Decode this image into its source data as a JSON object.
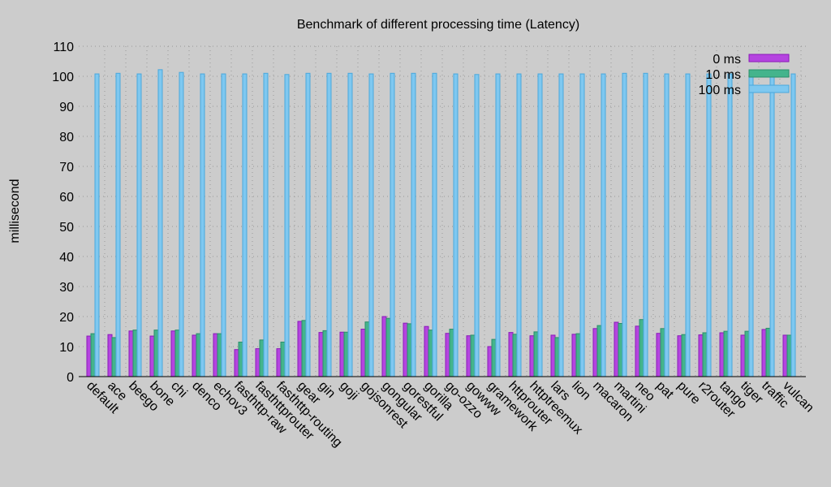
{
  "chart_data": {
    "type": "bar",
    "title": "Benchmark of different processing time (Latency)",
    "xlabel": "",
    "ylabel": "millisecond",
    "ylim": [
      0,
      110
    ],
    "yticks": [
      0,
      10,
      20,
      30,
      40,
      50,
      60,
      70,
      80,
      90,
      100,
      110
    ],
    "grid": true,
    "legend_placement": "top-right",
    "categories": [
      "default",
      "ace",
      "beego",
      "bone",
      "chi",
      "denco",
      "echov3",
      "fasthttp-raw",
      "fasthttprouter",
      "fasthttp-routing",
      "gear",
      "gin",
      "goji",
      "gojsonrest",
      "gongular",
      "gorestful",
      "gorilla",
      "go-ozzo",
      "gowww",
      "gramework",
      "httprouter",
      "httptreemux",
      "lars",
      "lion",
      "macaron",
      "martini",
      "neo",
      "pat",
      "pure",
      "r2router",
      "tango",
      "tiger",
      "traffic",
      "vulcan"
    ],
    "series": [
      {
        "name": "0 ms",
        "color": "#b544e0",
        "border": "#8a1ab8",
        "values": [
          13.5,
          14.0,
          15.2,
          13.5,
          15.2,
          13.8,
          14.3,
          9.0,
          9.3,
          9.3,
          18.4,
          14.7,
          14.8,
          15.8,
          20.0,
          17.8,
          16.7,
          14.4,
          13.6,
          10.0,
          14.7,
          13.6,
          13.8,
          14.1,
          16.0,
          18.1,
          16.8,
          14.4,
          13.6,
          13.9,
          14.6,
          13.8,
          15.7,
          13.8
        ]
      },
      {
        "name": "10 ms",
        "color": "#44b48c",
        "border": "#2a8f6a",
        "values": [
          14.3,
          13.0,
          15.5,
          15.5,
          15.5,
          14.3,
          14.3,
          11.5,
          12.2,
          11.5,
          18.7,
          15.3,
          14.8,
          18.2,
          19.4,
          17.6,
          15.5,
          15.8,
          13.8,
          12.4,
          14.1,
          14.9,
          13.0,
          14.3,
          17.0,
          17.7,
          19.0,
          16.0,
          14.0,
          14.6,
          15.1,
          15.1,
          16.1,
          13.8
        ]
      },
      {
        "name": "100 ms",
        "color": "#7fc8f0",
        "border": "#4aa8dc",
        "values": [
          100.8,
          101.0,
          100.8,
          102.2,
          101.3,
          100.8,
          100.8,
          100.8,
          101.0,
          100.6,
          101.0,
          101.0,
          101.0,
          100.8,
          101.0,
          101.0,
          101.0,
          100.8,
          100.6,
          100.8,
          100.8,
          100.8,
          100.8,
          100.8,
          100.8,
          101.0,
          101.0,
          100.8,
          100.8,
          100.8,
          100.8,
          100.8,
          100.8,
          100.8
        ]
      }
    ]
  }
}
